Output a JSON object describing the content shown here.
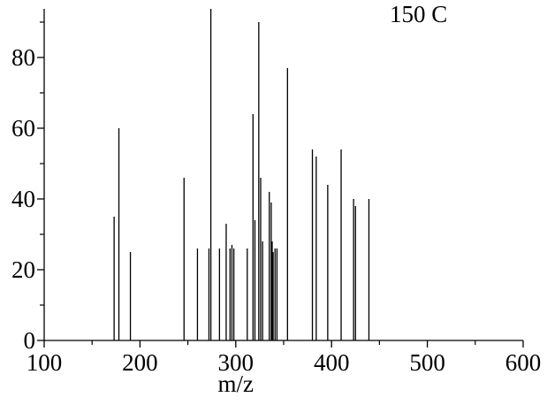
{
  "chart_data": {
    "type": "bar",
    "title": "",
    "annotation": "150 C",
    "xlabel": "m/z",
    "ylabel": "",
    "xlim": [
      100,
      600
    ],
    "ylim": [
      0,
      93
    ],
    "x_ticks": [
      100,
      200,
      300,
      400,
      500,
      600
    ],
    "x_tick_labels": [
      "100",
      "200",
      "300",
      "400",
      "500",
      "600"
    ],
    "y_ticks": [
      0,
      20,
      40,
      60,
      80
    ],
    "y_tick_labels": [
      "0",
      "20",
      "40",
      "60",
      "80"
    ],
    "grid": false,
    "series": [
      {
        "x": [
          173,
          178,
          190,
          246,
          260,
          272,
          274,
          283,
          290,
          294,
          296,
          298,
          312,
          318,
          320,
          324,
          326,
          328,
          335,
          337,
          338,
          339,
          341,
          343,
          354,
          380,
          384,
          396,
          410,
          423,
          425,
          439
        ],
        "values": [
          35,
          60,
          25,
          46,
          26,
          26,
          100,
          26,
          33,
          26,
          27,
          26,
          26,
          64,
          34,
          90,
          46,
          28,
          42,
          39,
          28,
          25,
          26,
          26,
          77,
          54,
          52,
          44,
          54,
          40,
          38,
          40
        ]
      }
    ],
    "colors": {
      "axis": "#000000",
      "bars": "#000000",
      "background": "#ffffff"
    }
  }
}
